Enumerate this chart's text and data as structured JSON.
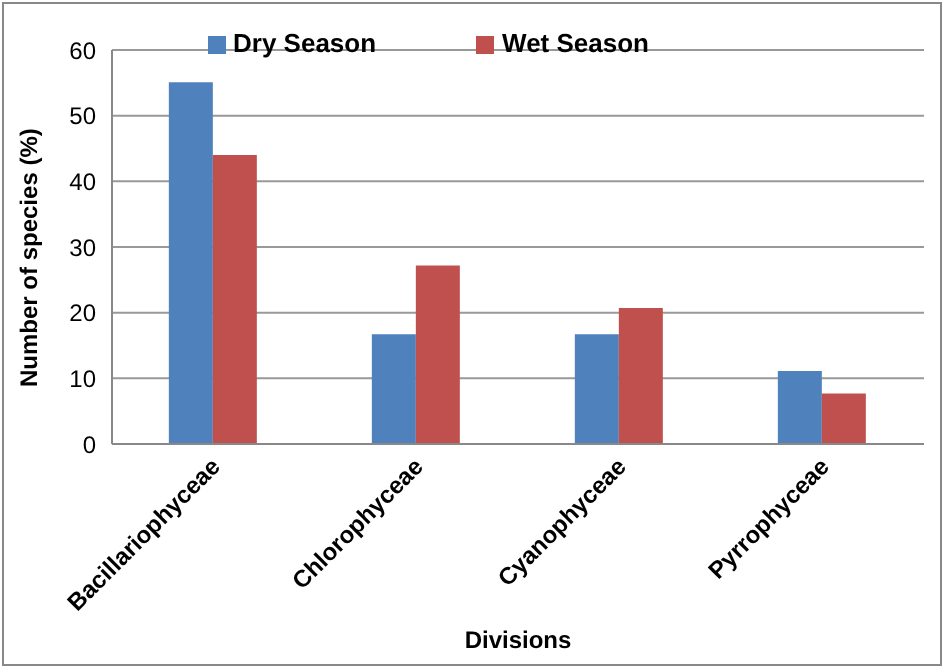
{
  "chart_data": {
    "type": "bar",
    "xlabel": "Divisions",
    "ylabel": "Number of species (%)",
    "categories": [
      "Bacillariophyceae",
      "Chlorophyceae",
      "Cyanophyceae",
      "Pyrrophyceae"
    ],
    "series": [
      {
        "name": "Dry Season",
        "color": "#4f81bd",
        "values": [
          55.1,
          16.7,
          16.7,
          11.1
        ]
      },
      {
        "name": "Wet Season",
        "color": "#c0504d",
        "values": [
          44.0,
          27.2,
          20.7,
          7.7
        ]
      }
    ],
    "ylim": [
      0,
      60
    ],
    "yticks": [
      0,
      10,
      20,
      30,
      40,
      50,
      60
    ],
    "grid": "y",
    "legend": "top"
  }
}
